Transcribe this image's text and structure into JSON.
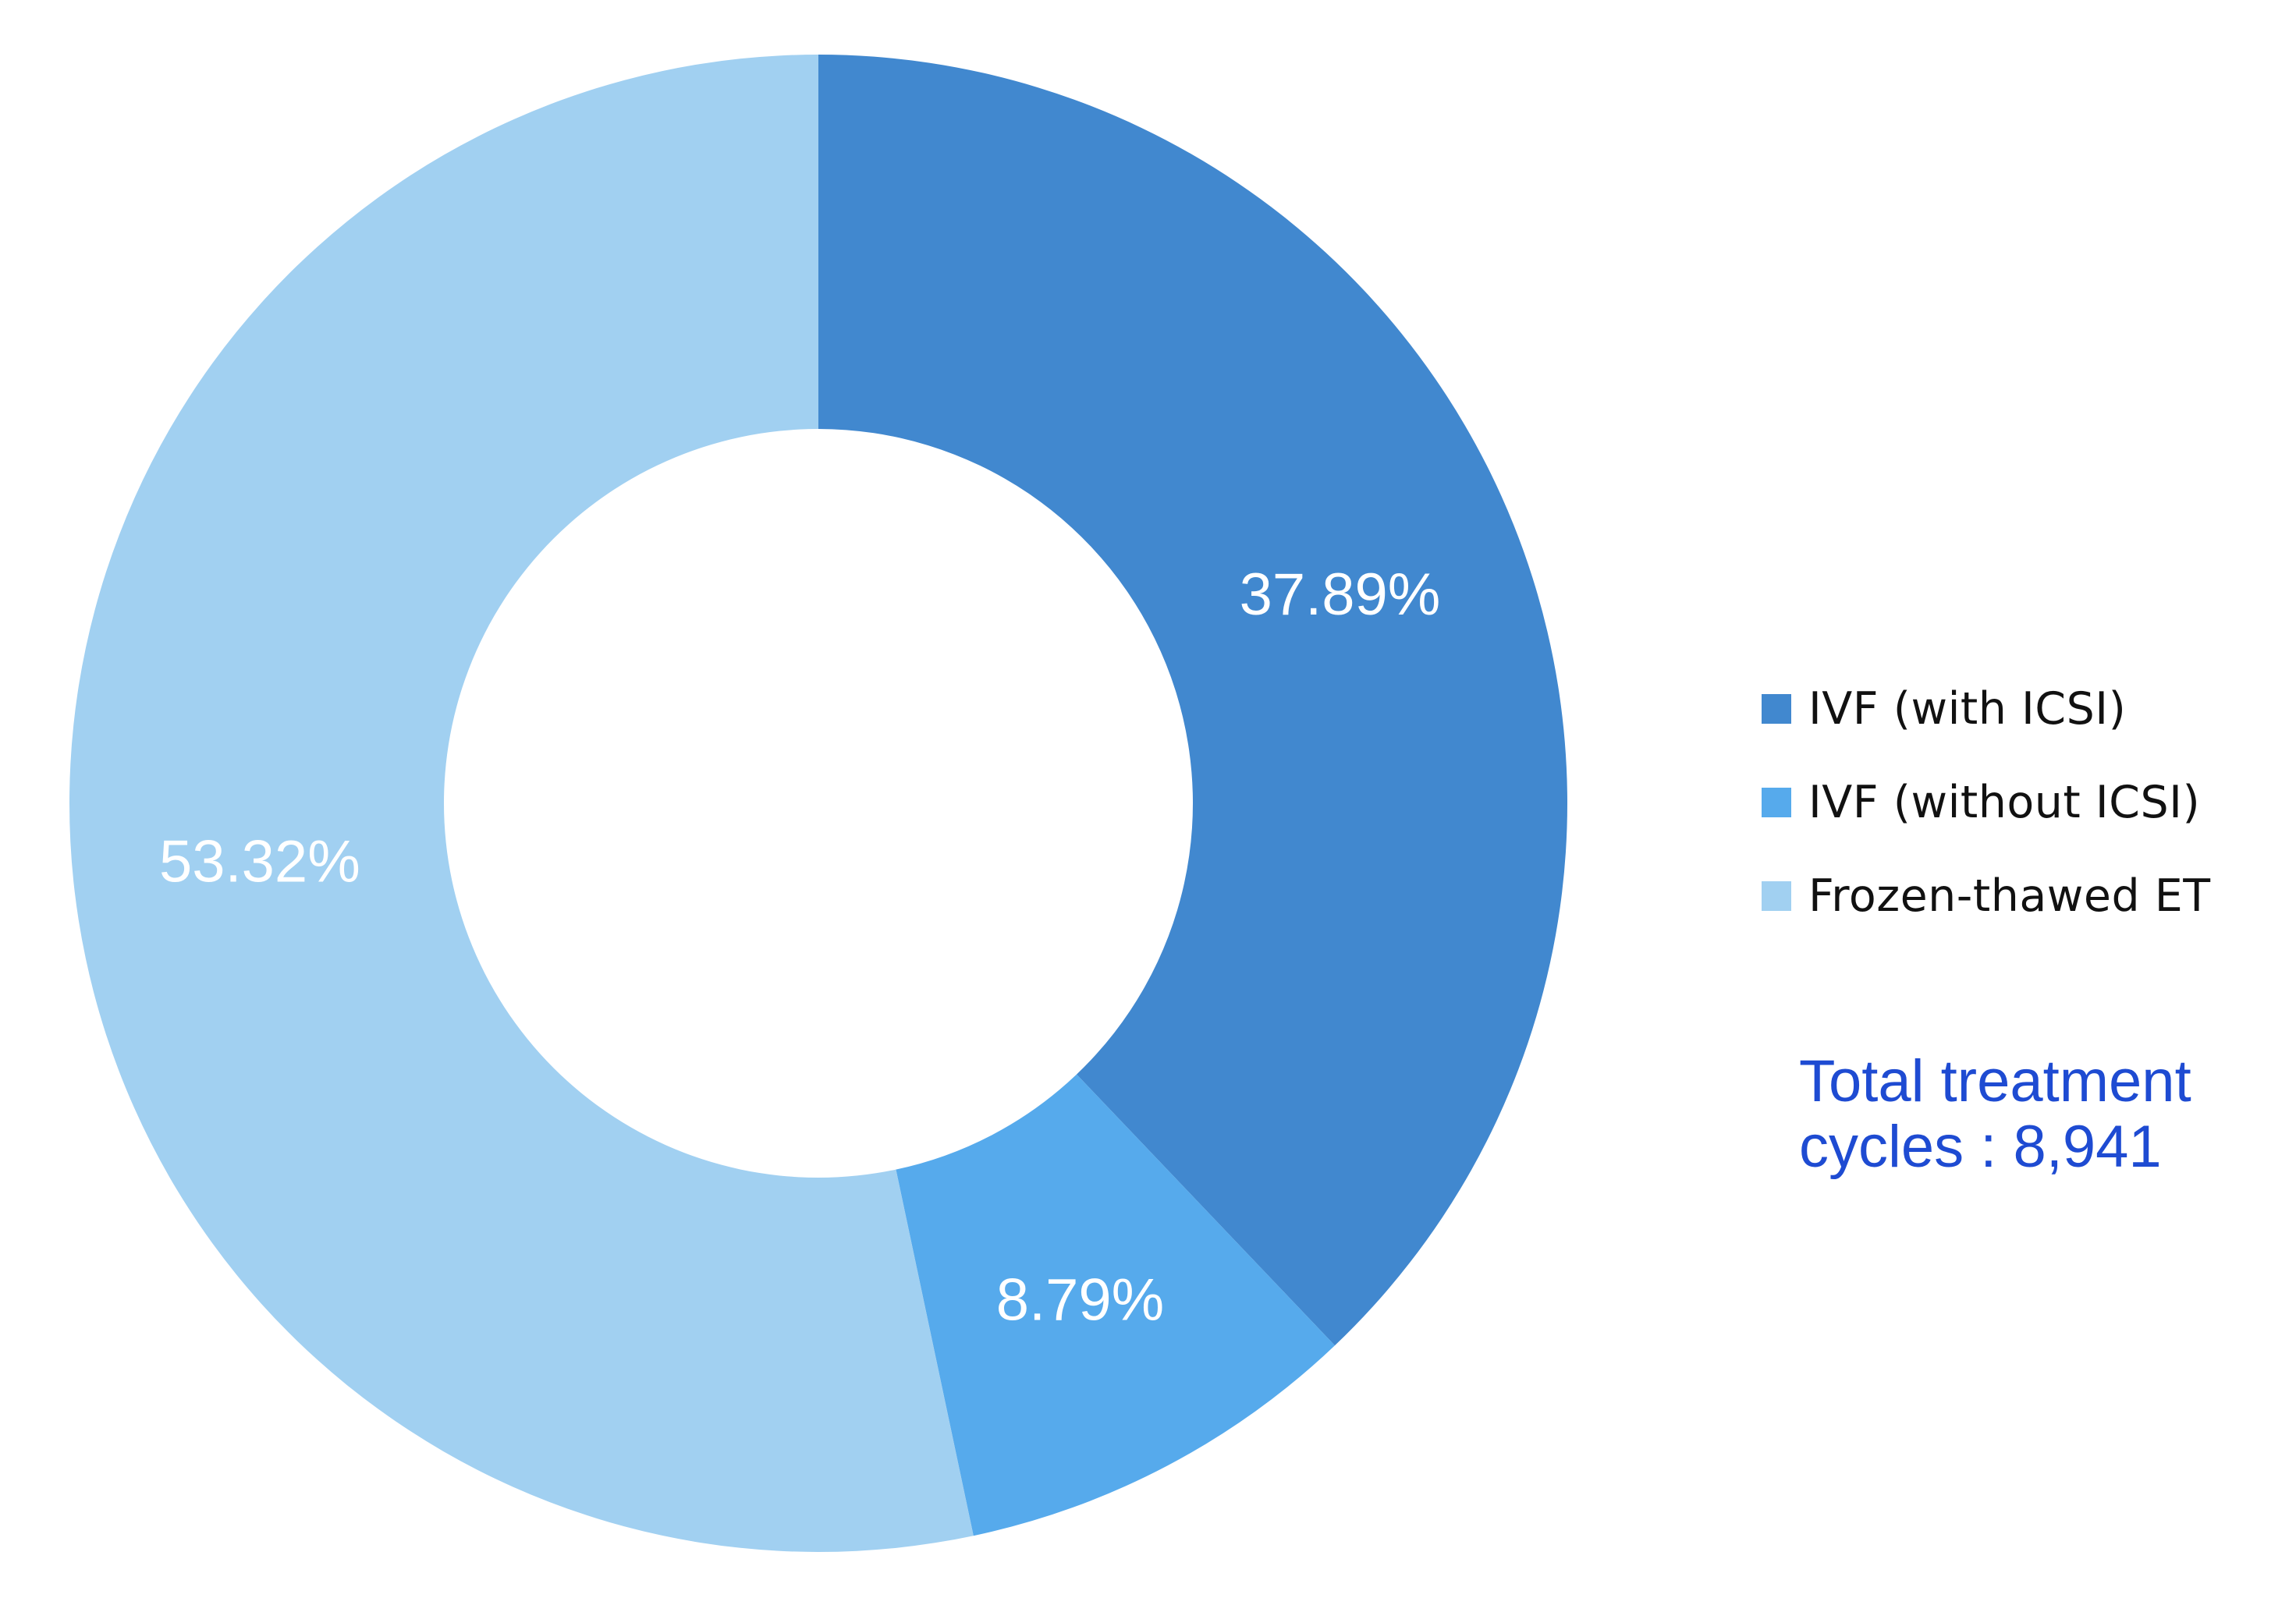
{
  "chart_data": {
    "type": "pie",
    "variant": "donut",
    "legend_position": "right",
    "series": [
      {
        "name": "IVF (with ICSI)",
        "value": 37.89,
        "label": "37.89%",
        "color": "#4188cf"
      },
      {
        "name": "IVF (without ICSI)",
        "value": 8.79,
        "label": "8.79%",
        "color": "#56aaec"
      },
      {
        "name": "Frozen-thawed ET",
        "value": 53.32,
        "label": "53.32%",
        "color": "#a1d0f1"
      }
    ]
  },
  "note": {
    "total_text": "Total treatment\ncycles : 8,941"
  }
}
